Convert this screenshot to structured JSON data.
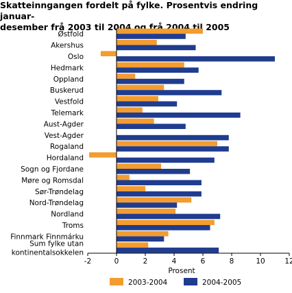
{
  "chart_data": {
    "type": "bar",
    "orientation": "horizontal",
    "title_lines": [
      "Skatteinngangen fordelt på fylke. Prosentvis endring januar-",
      "desember frå 2003 til 2004 og frå 2004 til 2005"
    ],
    "xlabel": "Prosent",
    "ylabel": "",
    "xlim": [
      -2,
      12
    ],
    "xticks": [
      -2,
      0,
      2,
      4,
      6,
      8,
      10,
      12
    ],
    "grid": false,
    "legend_position": "bottom",
    "categories": [
      [
        "Østfold"
      ],
      [
        "Akershus"
      ],
      [
        "Oslo"
      ],
      [
        "Hedmark"
      ],
      [
        "Oppland"
      ],
      [
        "Buskerud"
      ],
      [
        "Vestfold"
      ],
      [
        "Telemark"
      ],
      [
        "Aust-Agder"
      ],
      [
        "Vest-Agder"
      ],
      [
        "Rogaland"
      ],
      [
        "Hordaland"
      ],
      [
        "Sogn og Fjordane"
      ],
      [
        "Møre og Romsdal"
      ],
      [
        "Sør-Trøndelag"
      ],
      [
        "Nord-Trøndelag"
      ],
      [
        "Nordland"
      ],
      [
        "Troms"
      ],
      [
        "Finnmark Finnmárku"
      ],
      [
        "Sum fylke utan",
        "kontinentalsokkelen"
      ]
    ],
    "series": [
      {
        "name": "2003-2004",
        "color": "#f39c2f",
        "values": [
          6.0,
          2.8,
          -1.1,
          4.7,
          1.3,
          3.3,
          2.9,
          1.8,
          2.6,
          0.0,
          7.0,
          -1.9,
          3.1,
          0.9,
          2.0,
          5.2,
          4.1,
          6.8,
          3.6,
          2.2
        ]
      },
      {
        "name": "2004-2005",
        "color": "#1f3c8f",
        "values": [
          4.8,
          5.5,
          11.0,
          5.7,
          4.7,
          7.3,
          4.2,
          8.6,
          4.8,
          7.8,
          7.8,
          6.8,
          5.1,
          5.9,
          5.9,
          4.2,
          7.2,
          6.5,
          3.3,
          7.1
        ]
      }
    ]
  }
}
